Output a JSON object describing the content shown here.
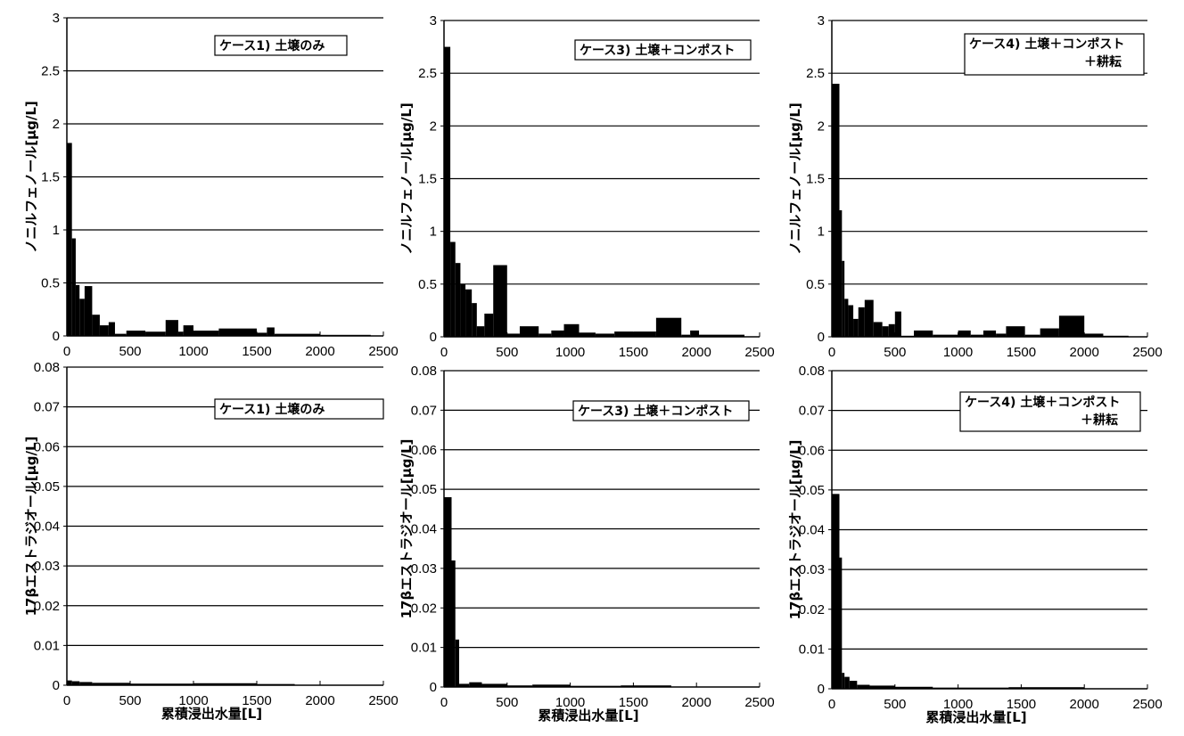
{
  "chart_data": [
    {
      "type": "bar",
      "legend": [
        "ケース1) 土壌のみ"
      ],
      "ylabel": "ノニルフェノール[μg/L]",
      "xlabel": "",
      "xlim": [
        0,
        2500
      ],
      "ylim": [
        0,
        3
      ],
      "xticks": [
        "0",
        "500",
        "1000",
        "1500",
        "2000",
        "2500"
      ],
      "yticks": [
        "0",
        "0.5",
        "1",
        "1.5",
        "2",
        "2.5",
        "3"
      ],
      "grid": true,
      "bars": [
        {
          "x0": 0,
          "x1": 40,
          "y": 1.82
        },
        {
          "x0": 40,
          "x1": 70,
          "y": 0.92
        },
        {
          "x0": 70,
          "x1": 100,
          "y": 0.48
        },
        {
          "x0": 100,
          "x1": 140,
          "y": 0.35
        },
        {
          "x0": 140,
          "x1": 200,
          "y": 0.47
        },
        {
          "x0": 200,
          "x1": 260,
          "y": 0.2
        },
        {
          "x0": 260,
          "x1": 330,
          "y": 0.1
        },
        {
          "x0": 330,
          "x1": 380,
          "y": 0.13
        },
        {
          "x0": 380,
          "x1": 470,
          "y": 0.02
        },
        {
          "x0": 470,
          "x1": 620,
          "y": 0.05
        },
        {
          "x0": 620,
          "x1": 780,
          "y": 0.04
        },
        {
          "x0": 780,
          "x1": 880,
          "y": 0.15
        },
        {
          "x0": 880,
          "x1": 920,
          "y": 0.04
        },
        {
          "x0": 920,
          "x1": 1000,
          "y": 0.1
        },
        {
          "x0": 1000,
          "x1": 1200,
          "y": 0.05
        },
        {
          "x0": 1200,
          "x1": 1500,
          "y": 0.07
        },
        {
          "x0": 1500,
          "x1": 1580,
          "y": 0.03
        },
        {
          "x0": 1580,
          "x1": 1640,
          "y": 0.08
        },
        {
          "x0": 1640,
          "x1": 2000,
          "y": 0.02
        },
        {
          "x0": 2000,
          "x1": 2400,
          "y": 0.01
        }
      ]
    },
    {
      "type": "bar",
      "legend": [
        "ケース3) 土壌＋コンポスト"
      ],
      "ylabel": "ノニルフェノール[μg/L]",
      "xlabel": "",
      "xlim": [
        0,
        2500
      ],
      "ylim": [
        0,
        3
      ],
      "xticks": [
        "0",
        "500",
        "1000",
        "1500",
        "2000",
        "2500"
      ],
      "yticks": [
        "0",
        "0.5",
        "1",
        "1.5",
        "2",
        "2.5",
        "3"
      ],
      "grid": true,
      "bars": [
        {
          "x0": 0,
          "x1": 50,
          "y": 2.75
        },
        {
          "x0": 50,
          "x1": 90,
          "y": 0.9
        },
        {
          "x0": 90,
          "x1": 130,
          "y": 0.7
        },
        {
          "x0": 130,
          "x1": 170,
          "y": 0.5
        },
        {
          "x0": 170,
          "x1": 220,
          "y": 0.45
        },
        {
          "x0": 220,
          "x1": 260,
          "y": 0.32
        },
        {
          "x0": 260,
          "x1": 320,
          "y": 0.1
        },
        {
          "x0": 320,
          "x1": 390,
          "y": 0.22
        },
        {
          "x0": 390,
          "x1": 500,
          "y": 0.68
        },
        {
          "x0": 500,
          "x1": 600,
          "y": 0.03
        },
        {
          "x0": 600,
          "x1": 750,
          "y": 0.1
        },
        {
          "x0": 750,
          "x1": 850,
          "y": 0.03
        },
        {
          "x0": 850,
          "x1": 950,
          "y": 0.06
        },
        {
          "x0": 950,
          "x1": 1070,
          "y": 0.12
        },
        {
          "x0": 1070,
          "x1": 1200,
          "y": 0.04
        },
        {
          "x0": 1200,
          "x1": 1350,
          "y": 0.03
        },
        {
          "x0": 1350,
          "x1": 1500,
          "y": 0.05
        },
        {
          "x0": 1500,
          "x1": 1680,
          "y": 0.05
        },
        {
          "x0": 1680,
          "x1": 1880,
          "y": 0.18
        },
        {
          "x0": 1880,
          "x1": 1950,
          "y": 0.02
        },
        {
          "x0": 1950,
          "x1": 2020,
          "y": 0.06
        },
        {
          "x0": 2020,
          "x1": 2380,
          "y": 0.02
        }
      ]
    },
    {
      "type": "bar",
      "legend": [
        "ケース4) 土壌＋コンポスト",
        "＋耕耘"
      ],
      "ylabel": "ノニルフェノール[μg/L]",
      "xlabel": "",
      "xlim": [
        0,
        2500
      ],
      "ylim": [
        0,
        3
      ],
      "xticks": [
        "0",
        "500",
        "1000",
        "1500",
        "2000",
        "2500"
      ],
      "yticks": [
        "0",
        "0.5",
        "1",
        "1.5",
        "2",
        "2.5",
        "3"
      ],
      "grid": true,
      "bars": [
        {
          "x0": 0,
          "x1": 60,
          "y": 2.4
        },
        {
          "x0": 60,
          "x1": 80,
          "y": 1.2
        },
        {
          "x0": 80,
          "x1": 100,
          "y": 0.72
        },
        {
          "x0": 100,
          "x1": 130,
          "y": 0.36
        },
        {
          "x0": 130,
          "x1": 170,
          "y": 0.3
        },
        {
          "x0": 170,
          "x1": 210,
          "y": 0.17
        },
        {
          "x0": 210,
          "x1": 260,
          "y": 0.28
        },
        {
          "x0": 260,
          "x1": 330,
          "y": 0.35
        },
        {
          "x0": 330,
          "x1": 400,
          "y": 0.14
        },
        {
          "x0": 400,
          "x1": 450,
          "y": 0.1
        },
        {
          "x0": 450,
          "x1": 500,
          "y": 0.12
        },
        {
          "x0": 500,
          "x1": 550,
          "y": 0.24
        },
        {
          "x0": 550,
          "x1": 650,
          "y": 0.01
        },
        {
          "x0": 650,
          "x1": 800,
          "y": 0.06
        },
        {
          "x0": 800,
          "x1": 1000,
          "y": 0.02
        },
        {
          "x0": 1000,
          "x1": 1100,
          "y": 0.06
        },
        {
          "x0": 1100,
          "x1": 1200,
          "y": 0.02
        },
        {
          "x0": 1200,
          "x1": 1300,
          "y": 0.06
        },
        {
          "x0": 1300,
          "x1": 1380,
          "y": 0.03
        },
        {
          "x0": 1380,
          "x1": 1530,
          "y": 0.1
        },
        {
          "x0": 1530,
          "x1": 1650,
          "y": 0.02
        },
        {
          "x0": 1650,
          "x1": 1800,
          "y": 0.08
        },
        {
          "x0": 1800,
          "x1": 2000,
          "y": 0.2
        },
        {
          "x0": 2000,
          "x1": 2150,
          "y": 0.03
        },
        {
          "x0": 2150,
          "x1": 2350,
          "y": 0.01
        }
      ]
    },
    {
      "type": "bar",
      "legend": [
        "ケース1) 土壌のみ"
      ],
      "ylabel": "17βエストラジオール[μg/L]",
      "xlabel": "累積浸出水量[L]",
      "xlim": [
        0,
        2500
      ],
      "ylim": [
        0,
        0.08
      ],
      "xticks": [
        "0",
        "500",
        "1000",
        "1500",
        "2000",
        "2500"
      ],
      "yticks": [
        "0",
        "0.01",
        "0.02",
        "0.03",
        "0.04",
        "0.05",
        "0.06",
        "0.07",
        "0.08"
      ],
      "grid": true,
      "bars": [
        {
          "x0": 0,
          "x1": 40,
          "y": 0.0012
        },
        {
          "x0": 40,
          "x1": 100,
          "y": 0.001
        },
        {
          "x0": 100,
          "x1": 200,
          "y": 0.0008
        },
        {
          "x0": 200,
          "x1": 500,
          "y": 0.0006
        },
        {
          "x0": 500,
          "x1": 1000,
          "y": 0.0004
        },
        {
          "x0": 1000,
          "x1": 1500,
          "y": 0.0005
        },
        {
          "x0": 1500,
          "x1": 1800,
          "y": 0.0003
        }
      ]
    },
    {
      "type": "bar",
      "legend": [
        "ケース3) 土壌＋コンポスト"
      ],
      "ylabel": "17βエストラジオール[μg/L]",
      "xlabel": "累積浸出水量[L]",
      "xlim": [
        0,
        2500
      ],
      "ylim": [
        0,
        0.08
      ],
      "xticks": [
        "0",
        "500",
        "1000",
        "1500",
        "2000",
        "2500"
      ],
      "yticks": [
        "0",
        "0.01",
        "0.02",
        "0.03",
        "0.04",
        "0.05",
        "0.06",
        "0.07",
        "0.08"
      ],
      "grid": true,
      "bars": [
        {
          "x0": 0,
          "x1": 60,
          "y": 0.048
        },
        {
          "x0": 60,
          "x1": 90,
          "y": 0.032
        },
        {
          "x0": 90,
          "x1": 120,
          "y": 0.012
        },
        {
          "x0": 120,
          "x1": 200,
          "y": 0.0008
        },
        {
          "x0": 200,
          "x1": 300,
          "y": 0.0012
        },
        {
          "x0": 300,
          "x1": 500,
          "y": 0.0008
        },
        {
          "x0": 500,
          "x1": 700,
          "y": 0.0004
        },
        {
          "x0": 700,
          "x1": 1000,
          "y": 0.0006
        },
        {
          "x0": 1000,
          "x1": 1400,
          "y": 0.0003
        },
        {
          "x0": 1400,
          "x1": 1800,
          "y": 0.0004
        }
      ]
    },
    {
      "type": "bar",
      "legend": [
        "ケース4) 土壌＋コンポスト",
        "＋耕耘"
      ],
      "ylabel": "17βエストラジオール[μg/L]",
      "xlabel": "累積浸出水量[L]",
      "xlim": [
        0,
        2500
      ],
      "ylim": [
        0,
        0.08
      ],
      "xticks": [
        "0",
        "500",
        "1000",
        "1500",
        "2000",
        "2500"
      ],
      "yticks": [
        "0",
        "0.01",
        "0.02",
        "0.03",
        "0.04",
        "0.05",
        "0.06",
        "0.07",
        "0.08"
      ],
      "grid": true,
      "bars": [
        {
          "x0": 0,
          "x1": 60,
          "y": 0.049
        },
        {
          "x0": 60,
          "x1": 80,
          "y": 0.033
        },
        {
          "x0": 80,
          "x1": 100,
          "y": 0.004
        },
        {
          "x0": 100,
          "x1": 140,
          "y": 0.003
        },
        {
          "x0": 140,
          "x1": 200,
          "y": 0.002
        },
        {
          "x0": 200,
          "x1": 300,
          "y": 0.001
        },
        {
          "x0": 300,
          "x1": 500,
          "y": 0.0008
        },
        {
          "x0": 500,
          "x1": 800,
          "y": 0.0005
        },
        {
          "x0": 800,
          "x1": 1400,
          "y": 0.0003
        },
        {
          "x0": 1400,
          "x1": 2000,
          "y": 0.0004
        }
      ]
    }
  ]
}
